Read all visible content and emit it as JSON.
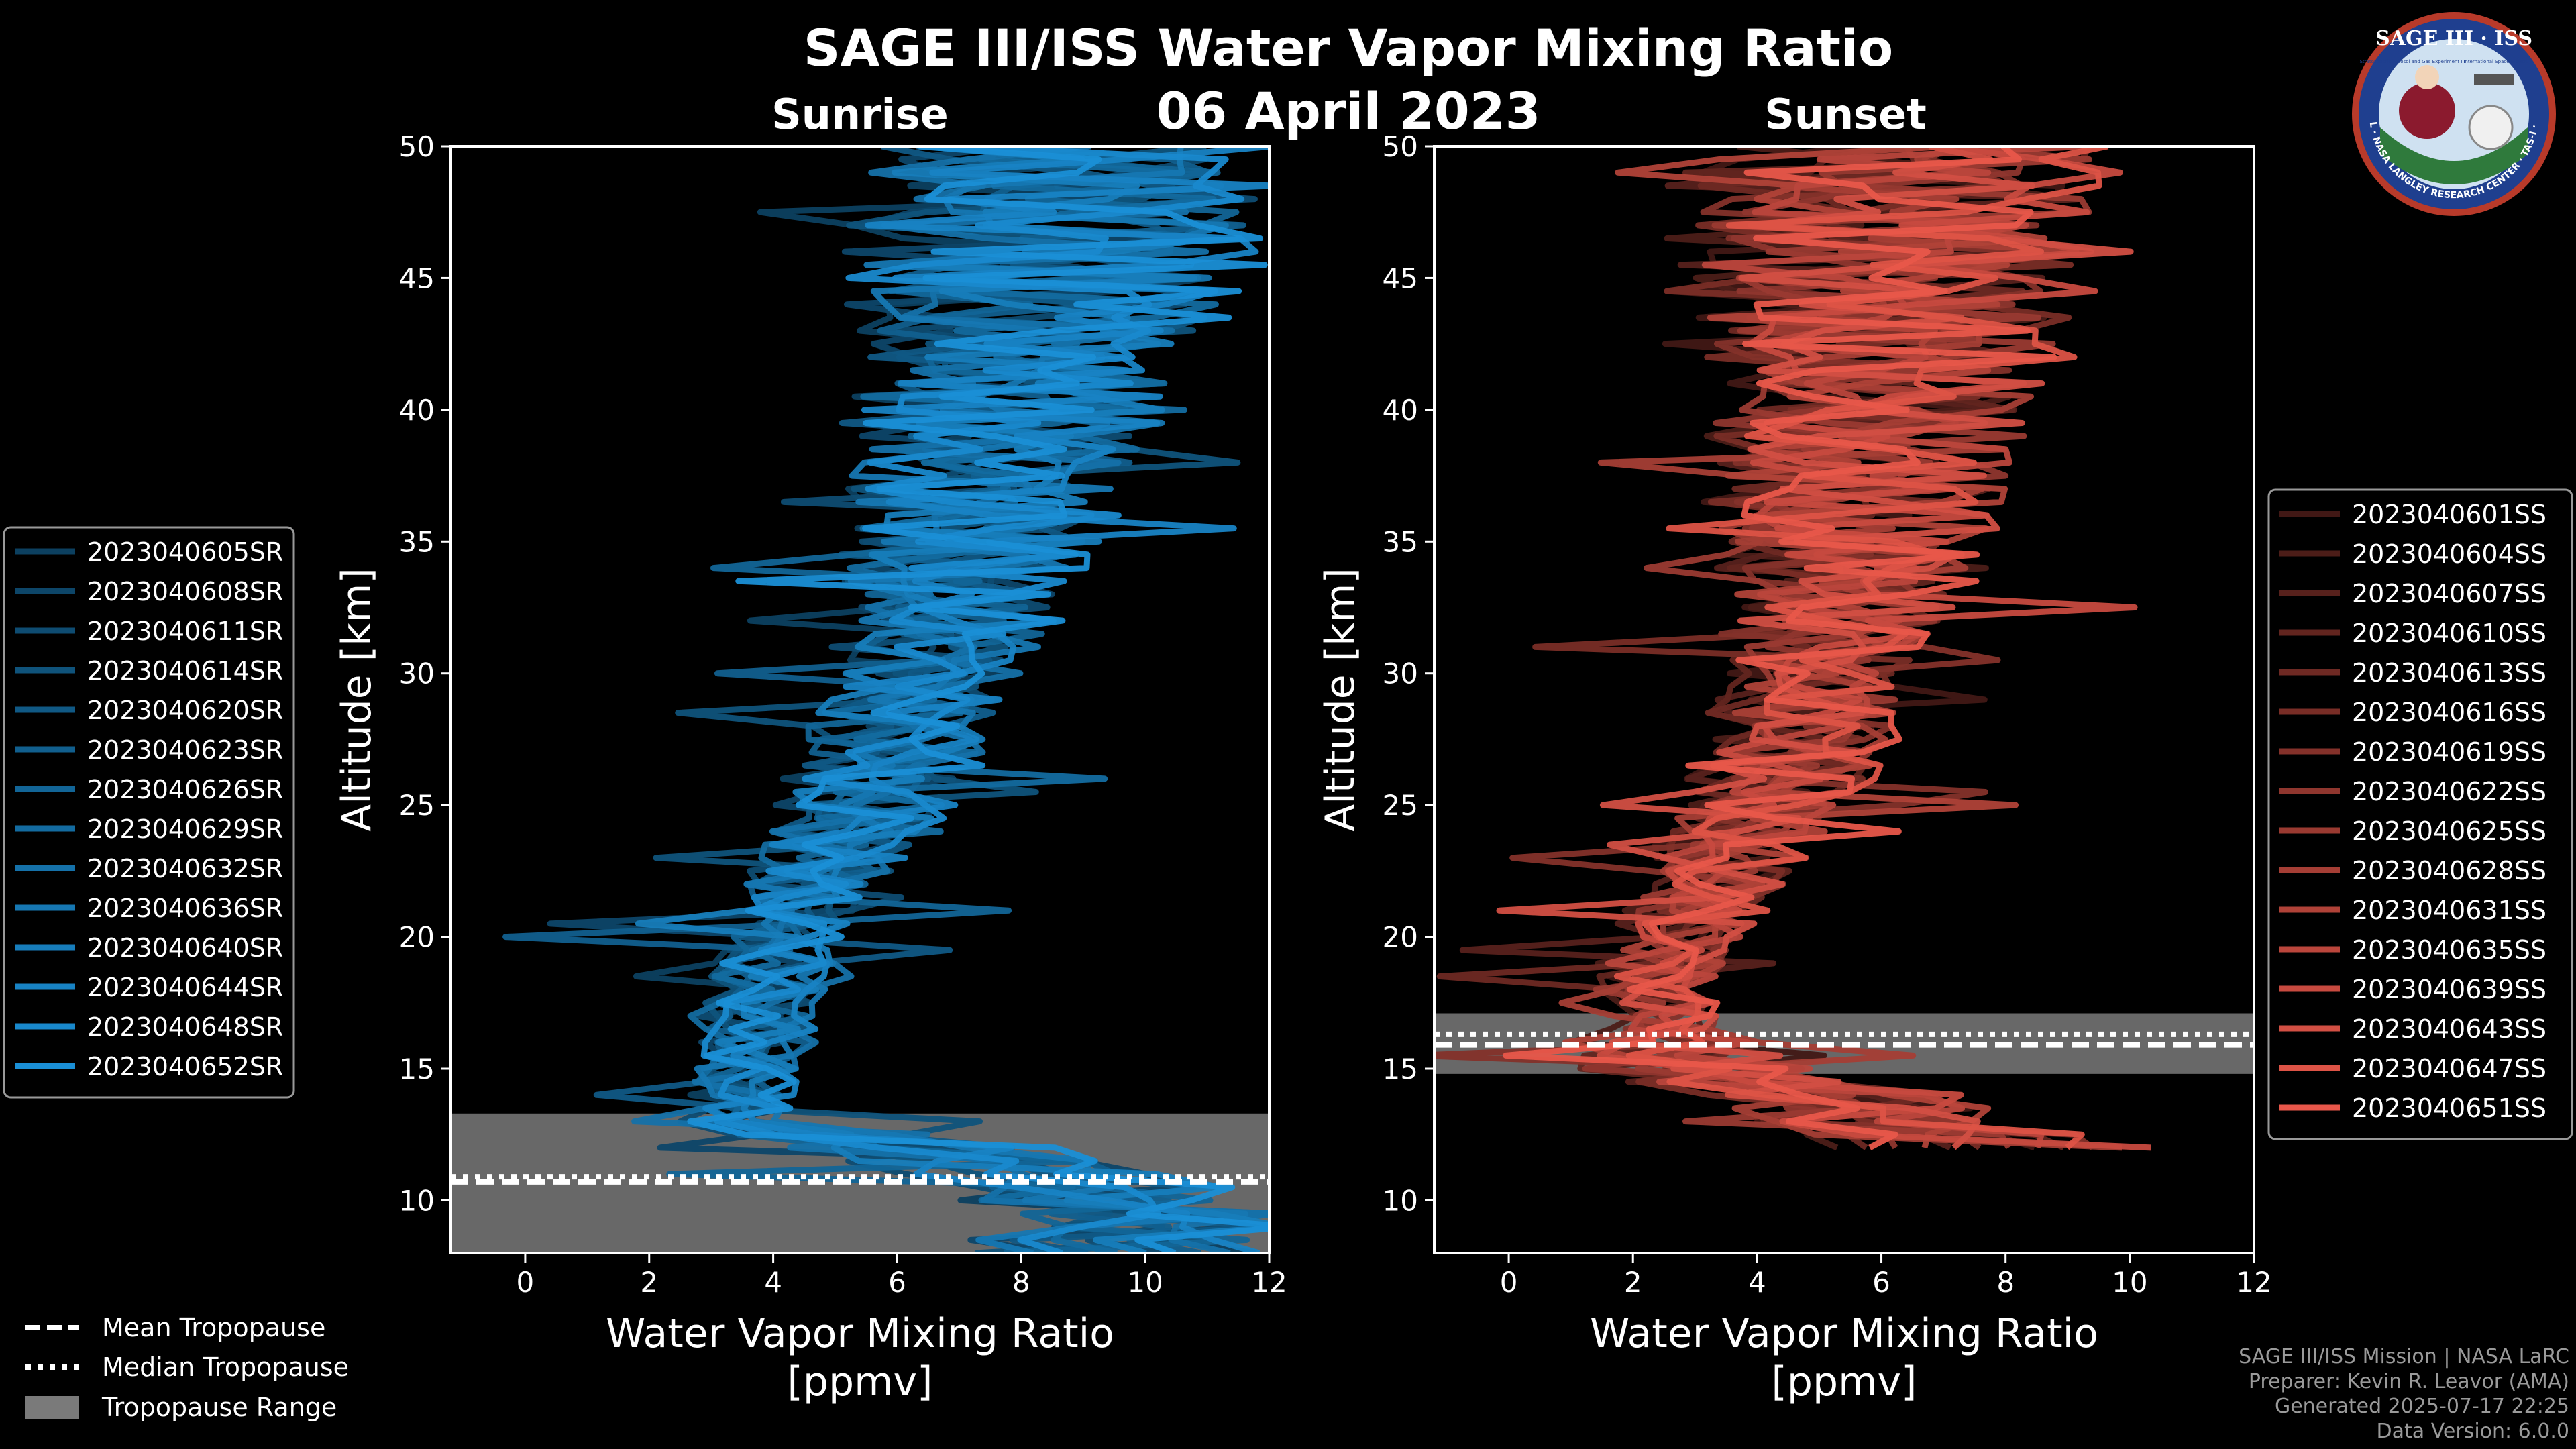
{
  "title": "SAGE III/ISS Water Vapor Mixing Ratio",
  "date": "06 April 2023",
  "logo": {
    "top_text": "SAGE III · ISS",
    "ring_text": "BALL · NASA LANGLEY RESEARCH CENTER · TAS-I · ESA",
    "small_left": "Stratospheric Aerosol and Gas Experiment III",
    "small_right": "International Space Station"
  },
  "colors": {
    "sunrise": "#1a8fd6",
    "sunset": "#e8574a",
    "range": "#7a7a7a",
    "axis": "#ffffff"
  },
  "footer": {
    "line1": "SAGE III/ISS Mission | NASA LaRC",
    "line2": "Preparer: Kevin R. Leavor (AMA)",
    "line3": "Generated 2025-07-17 22:25",
    "line4": "Data Version: 6.0.0"
  },
  "chart_data": [
    {
      "type": "line",
      "panel": "Sunrise",
      "title": "Sunrise",
      "xlabel": "Water Vapor Mixing Ratio\n[ppmv]",
      "ylabel": "Altitude [km]",
      "xlim": [
        -1.2,
        12
      ],
      "ylim": [
        8,
        50
      ],
      "xticks": [
        0,
        2,
        4,
        6,
        8,
        10,
        12
      ],
      "yticks": [
        10,
        15,
        20,
        25,
        30,
        35,
        40,
        45,
        50
      ],
      "legend_position": "left",
      "series": [
        {
          "name": "2023040605SR"
        },
        {
          "name": "2023040608SR"
        },
        {
          "name": "2023040611SR"
        },
        {
          "name": "2023040614SR"
        },
        {
          "name": "2023040620SR"
        },
        {
          "name": "2023040623SR"
        },
        {
          "name": "2023040626SR"
        },
        {
          "name": "2023040629SR"
        },
        {
          "name": "2023040632SR"
        },
        {
          "name": "2023040636SR"
        },
        {
          "name": "2023040640SR"
        },
        {
          "name": "2023040644SR"
        },
        {
          "name": "2023040648SR"
        },
        {
          "name": "2023040652SR"
        }
      ],
      "tropopause": {
        "range": [
          8,
          13.3
        ],
        "mean": 10.7,
        "median": 10.9
      },
      "profile": {
        "centers": [
          [
            8,
            9
          ],
          [
            10,
            9
          ],
          [
            12,
            6
          ],
          [
            13,
            3.2
          ],
          [
            16,
            3.5
          ],
          [
            20,
            3.8
          ],
          [
            25,
            5.2
          ],
          [
            30,
            6
          ],
          [
            35,
            6.7
          ],
          [
            40,
            7
          ],
          [
            45,
            7.5
          ],
          [
            50,
            8
          ]
        ],
        "spreads": [
          [
            8,
            2.5
          ],
          [
            12,
            2.5
          ],
          [
            13,
            0.9
          ],
          [
            20,
            1.0
          ],
          [
            25,
            1.4
          ],
          [
            30,
            1.6
          ],
          [
            35,
            2.0
          ],
          [
            40,
            2.6
          ],
          [
            45,
            3.2
          ],
          [
            50,
            3.5
          ]
        ]
      }
    },
    {
      "type": "line",
      "panel": "Sunset",
      "title": "Sunset",
      "xlabel": "Water Vapor Mixing Ratio\n[ppmv]",
      "ylabel": "Altitude [km]",
      "xlim": [
        -1.2,
        12
      ],
      "ylim": [
        8,
        50
      ],
      "xticks": [
        0,
        2,
        4,
        6,
        8,
        10,
        12
      ],
      "yticks": [
        10,
        15,
        20,
        25,
        30,
        35,
        40,
        45,
        50
      ],
      "legend_position": "right",
      "series": [
        {
          "name": "2023040601SS"
        },
        {
          "name": "2023040604SS"
        },
        {
          "name": "2023040607SS"
        },
        {
          "name": "2023040610SS"
        },
        {
          "name": "2023040613SS"
        },
        {
          "name": "2023040616SS"
        },
        {
          "name": "2023040619SS"
        },
        {
          "name": "2023040622SS"
        },
        {
          "name": "2023040625SS"
        },
        {
          "name": "2023040628SS"
        },
        {
          "name": "2023040631SS"
        },
        {
          "name": "2023040635SS"
        },
        {
          "name": "2023040639SS"
        },
        {
          "name": "2023040643SS"
        },
        {
          "name": "2023040647SS"
        },
        {
          "name": "2023040651SS"
        }
      ],
      "tropopause": {
        "range": [
          14.8,
          17.1
        ],
        "mean": 15.9,
        "median": 16.3
      },
      "profile": {
        "centers": [
          [
            12,
            9
          ],
          [
            14,
            6
          ],
          [
            15,
            4
          ],
          [
            16.5,
            3
          ],
          [
            18,
            2.7
          ],
          [
            20,
            3.2
          ],
          [
            25,
            4.8
          ],
          [
            30,
            5.8
          ],
          [
            35,
            6.5
          ],
          [
            40,
            7
          ],
          [
            45,
            7.5
          ],
          [
            50,
            8
          ]
        ],
        "spreads": [
          [
            12,
            2.5
          ],
          [
            15,
            2
          ],
          [
            16.5,
            0.9
          ],
          [
            20,
            1.0
          ],
          [
            25,
            1.4
          ],
          [
            30,
            1.6
          ],
          [
            35,
            2.1
          ],
          [
            40,
            2.7
          ],
          [
            45,
            3.3
          ],
          [
            50,
            3.5
          ]
        ]
      }
    }
  ],
  "legend_extra": {
    "mean": "Mean Tropopause",
    "median": "Median Tropopause",
    "range": "Tropopause Range"
  }
}
